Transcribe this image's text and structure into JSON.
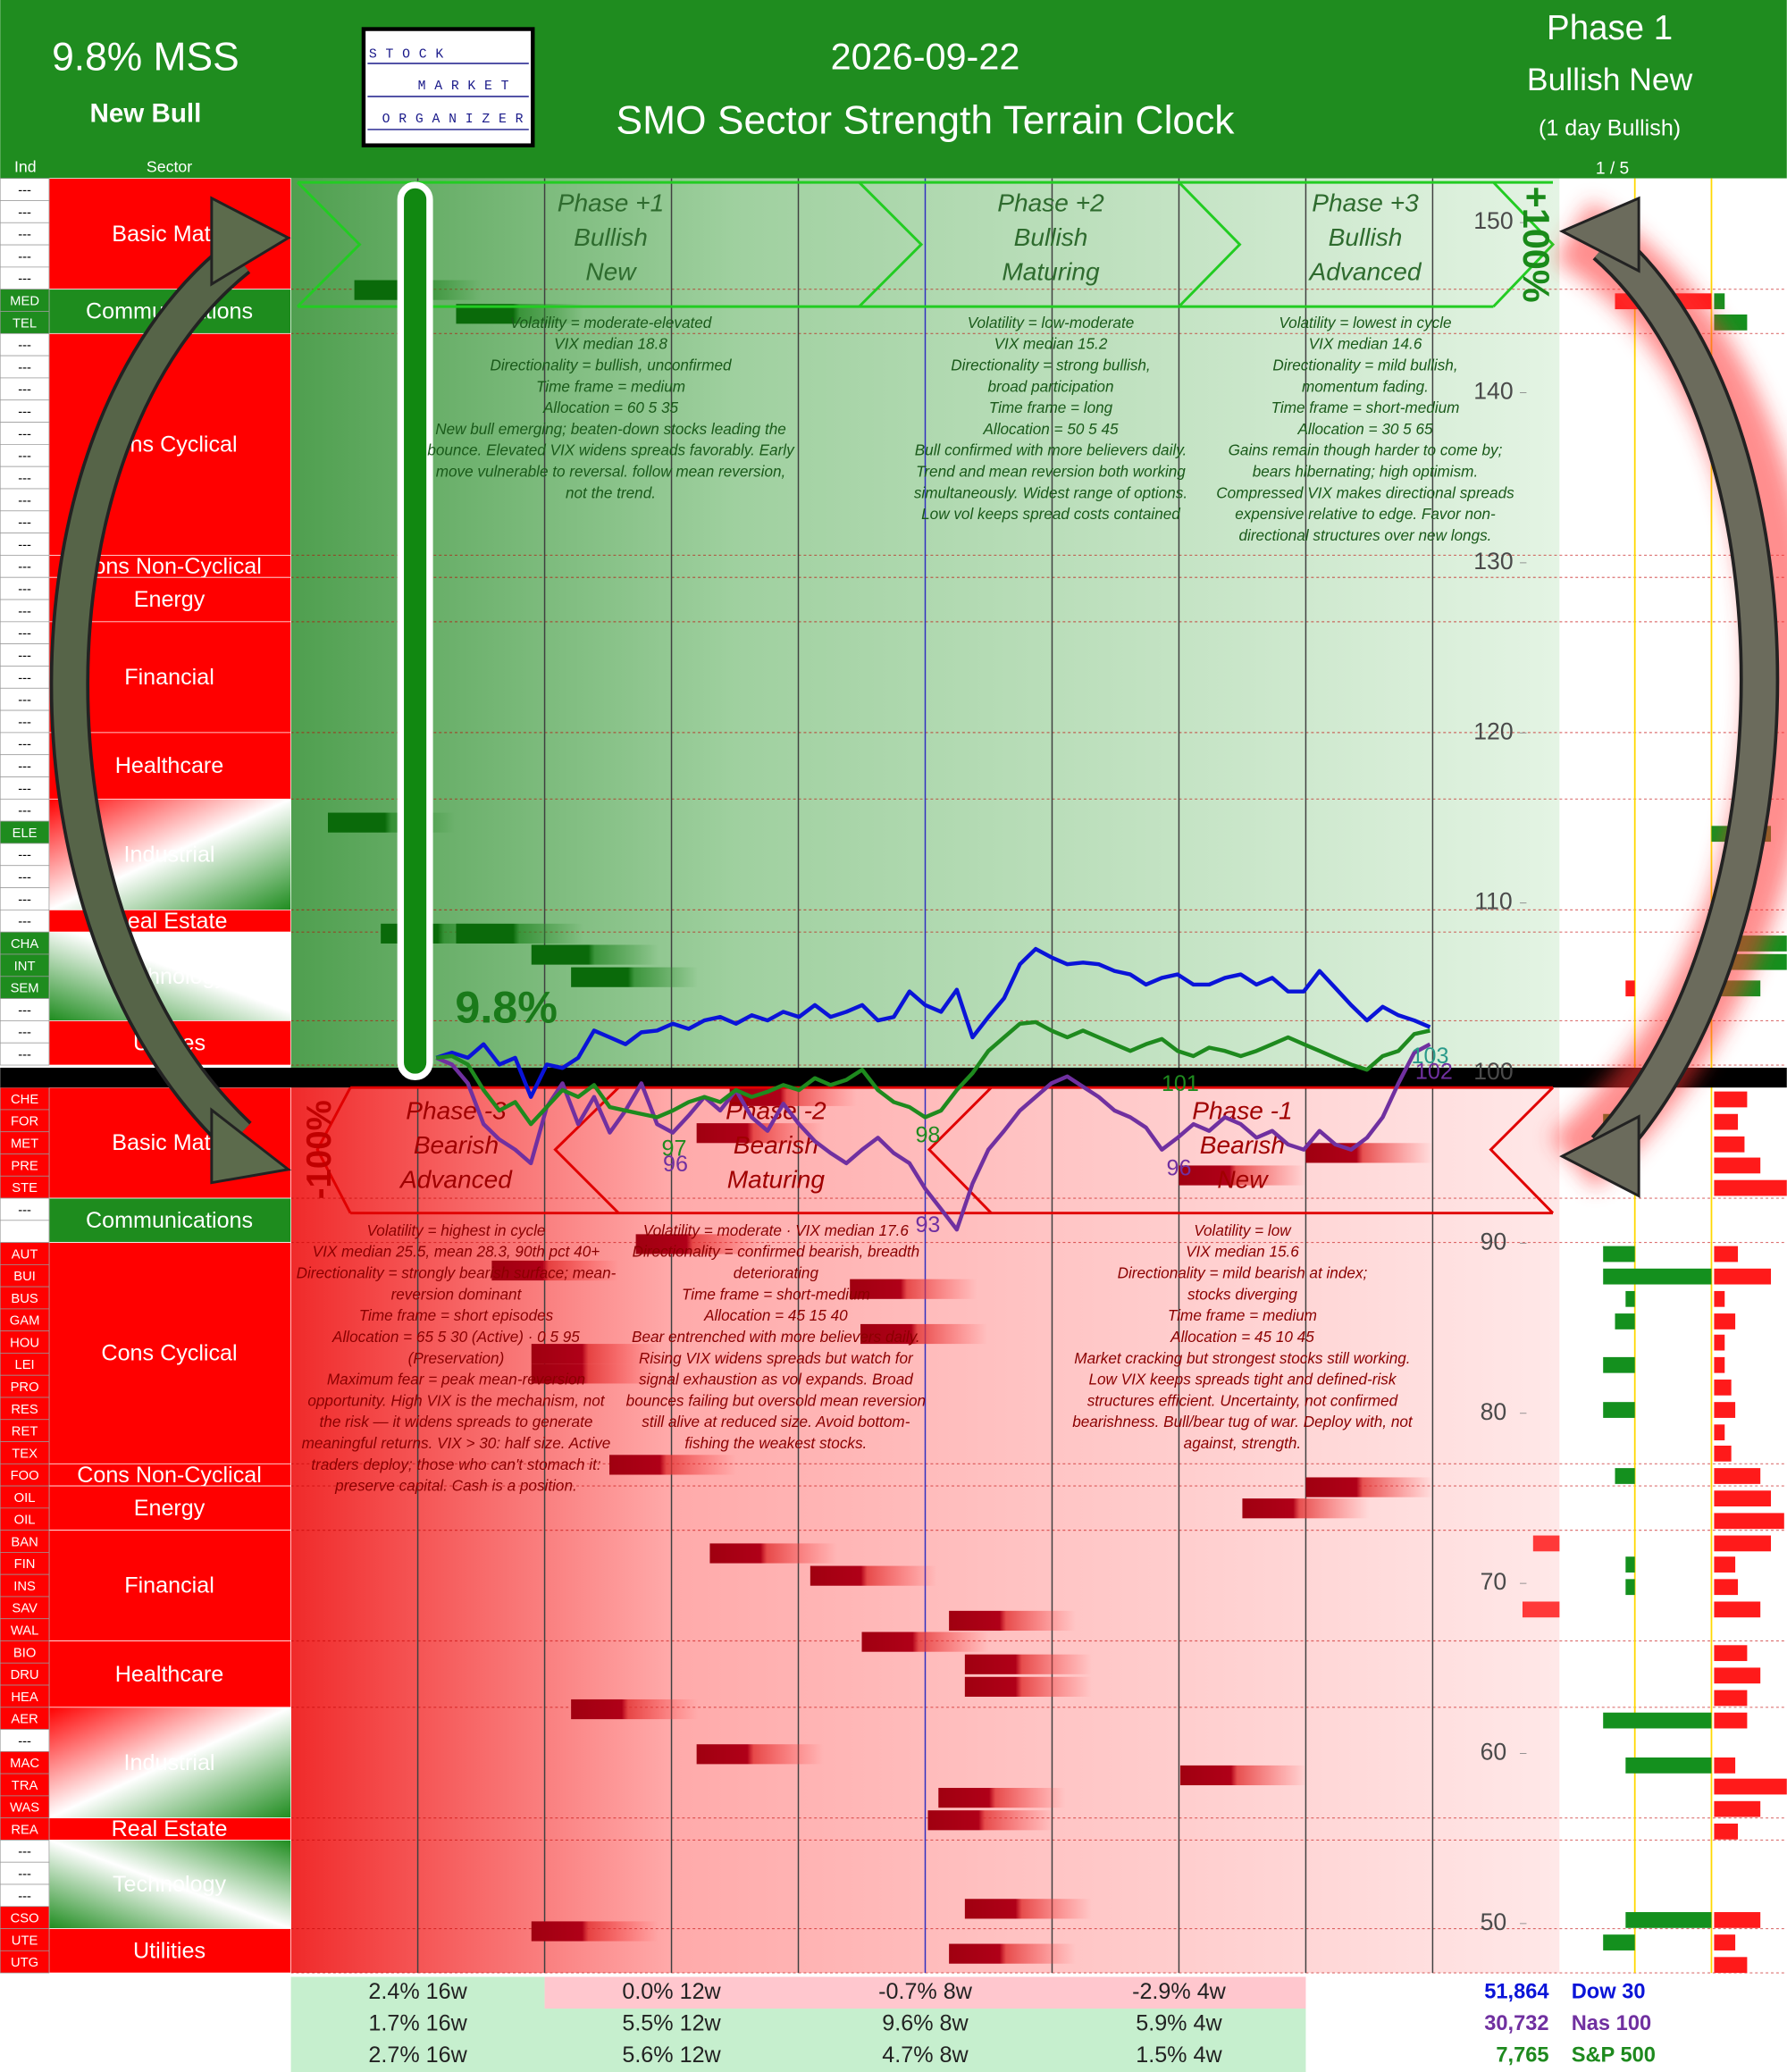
{
  "header": {
    "mss": "9.8% MSS",
    "status": "New Bull",
    "logo": [
      "STOCK",
      "MARKET",
      "ORGANIZER"
    ],
    "date": "2026-09-22",
    "title": "SMO Sector Strength Terrain Clock",
    "phase": "Phase 1",
    "phase_name": "Bullish New",
    "phase_note": "(1 day Bullish)"
  },
  "columns": {
    "ind": "Ind",
    "sector": "Sector",
    "page": "1 / 5"
  },
  "sectors": {
    "top": [
      {
        "name": "Basic Matls",
        "fill": "red",
        "codes": [
          "---",
          "---",
          "---",
          "---",
          "---"
        ]
      },
      {
        "name": "Communications",
        "fill": "green",
        "codes": [
          "MED",
          "TEL"
        ]
      },
      {
        "name": "Cons Cyclical",
        "fill": "red",
        "codes": [
          "---",
          "---",
          "---",
          "---",
          "---",
          "---",
          "---",
          "---",
          "---",
          "---"
        ]
      },
      {
        "name": "Cons Non-Cyclical",
        "fill": "red",
        "codes": [
          "---"
        ]
      },
      {
        "name": "Energy",
        "fill": "red",
        "codes": [
          "---",
          "---"
        ]
      },
      {
        "name": "Financial",
        "fill": "red",
        "codes": [
          "---",
          "---",
          "---",
          "---",
          "---"
        ]
      },
      {
        "name": "Healthcare",
        "fill": "red",
        "codes": [
          "---",
          "---",
          "---"
        ]
      },
      {
        "name": "Industrial",
        "fill": "gradient-red-green",
        "code_fill": "green",
        "codes": [
          "---",
          "ELE",
          "---",
          "---",
          "---"
        ]
      },
      {
        "name": "Real Estate",
        "fill": "red",
        "codes": [
          "---"
        ]
      },
      {
        "name": "Technology",
        "fill": "gradient-green-white",
        "code_fill": "green",
        "codes": [
          "CHA",
          "INT",
          "SEM",
          "---"
        ]
      },
      {
        "name": "Utilities",
        "fill": "red",
        "codes": [
          "---",
          "---"
        ]
      }
    ],
    "bottom": [
      {
        "name": "Basic Matls",
        "fill": "red",
        "codes": [
          "CHE",
          "FOR",
          "MET",
          "PRE",
          "STE"
        ]
      },
      {
        "name": "Communications",
        "fill": "green",
        "codes": [
          "---",
          null
        ]
      },
      {
        "name": "Cons Cyclical",
        "fill": "red",
        "codes": [
          "AUT",
          "BUI",
          "BUS",
          "GAM",
          "HOU",
          "LEI",
          "PRO",
          "RES",
          "RET",
          "TEX"
        ]
      },
      {
        "name": "Cons Non-Cyclical",
        "fill": "red",
        "codes": [
          "FOO"
        ]
      },
      {
        "name": "Energy",
        "fill": "red",
        "codes": [
          "OIL",
          "OIL"
        ]
      },
      {
        "name": "Financial",
        "fill": "red",
        "codes": [
          "BAN",
          "FIN",
          "INS",
          "SAV",
          "WAL"
        ]
      },
      {
        "name": "Healthcare",
        "fill": "red",
        "codes": [
          "BIO",
          "DRU",
          "HEA"
        ]
      },
      {
        "name": "Industrial",
        "fill": "gradient-red-green",
        "code_fill": "red",
        "codes": [
          "AER",
          "---",
          "MAC",
          "TRA",
          "WAS"
        ]
      },
      {
        "name": "Real Estate",
        "fill": "red",
        "codes": [
          "REA"
        ]
      },
      {
        "name": "Technology",
        "fill": "gradient-green-white-green",
        "code_fill": "red",
        "codes": [
          "---",
          "---",
          "---",
          "CSO"
        ]
      },
      {
        "name": "Utilities",
        "fill": "red",
        "codes": [
          "UTE",
          "UTG"
        ]
      }
    ]
  },
  "chart_data": {
    "type": "line",
    "ylim": [
      47.1,
      152.6
    ],
    "yticks": [
      150,
      140,
      130,
      120,
      110,
      100,
      90,
      80,
      70,
      60,
      50
    ],
    "grid": false,
    "mss_label": "9.8%",
    "bull_extreme": "+100%",
    "bear_extreme": "-100%",
    "series": [
      {
        "name": "Dow 30",
        "color": "#0a14d8",
        "values": [
          100.9,
          101.2,
          100.9,
          101.7,
          100.5,
          100.9,
          98.6,
          100.5,
          100.3,
          100.9,
          102.5,
          102.1,
          101.7,
          102.4,
          102.5,
          102.9,
          102.6,
          103.1,
          103.3,
          102.9,
          103.4,
          103.1,
          103.6,
          103.3,
          104.0,
          103.3,
          103.6,
          104.0,
          103.1,
          103.3,
          104.8,
          104.0,
          103.6,
          104.9,
          102.1,
          103.3,
          104.4,
          106.4,
          107.3,
          106.8,
          106.4,
          106.5,
          106.4,
          106.0,
          105.8,
          105.2,
          105.6,
          105.8,
          105.2,
          105.2,
          105.6,
          105.8,
          105.2,
          105.6,
          104.8,
          104.8,
          106.0,
          105.0,
          104.0,
          103.1,
          103.9,
          103.4,
          103.1,
          102.7
        ]
      },
      {
        "name": "Nas 100",
        "color": "#7030a0",
        "values": [
          100.9,
          100.5,
          99.4,
          97.0,
          96.1,
          95.5,
          94.7,
          98.0,
          99.4,
          97.0,
          98.6,
          96.5,
          97.8,
          99.4,
          97.0,
          96.5,
          97.5,
          98.6,
          97.8,
          99.0,
          97.4,
          96.6,
          98.2,
          97.0,
          96.0,
          95.3,
          94.7,
          95.5,
          96.2,
          95.3,
          94.7,
          93.2,
          92.0,
          90.8,
          93.5,
          95.5,
          96.6,
          97.8,
          98.6,
          99.4,
          99.8,
          99.2,
          98.6,
          97.8,
          97.4,
          96.8,
          95.5,
          96.2,
          97.0,
          96.6,
          97.4,
          97.0,
          96.2,
          96.6,
          95.8,
          95.5,
          96.6,
          95.8,
          95.5,
          96.2,
          97.4,
          99.4,
          101.2,
          101.7
        ]
      },
      {
        "name": "S&P 500",
        "color": "#1e8a1e",
        "values": [
          100.9,
          101.0,
          100.5,
          99.0,
          97.8,
          98.3,
          97.0,
          98.0,
          99.0,
          98.6,
          99.3,
          98.0,
          97.8,
          97.6,
          97.4,
          97.8,
          98.3,
          98.6,
          98.3,
          99.0,
          98.6,
          98.9,
          99.3,
          99.0,
          99.7,
          99.3,
          99.6,
          100.2,
          99.0,
          98.3,
          98.0,
          97.4,
          97.8,
          99.0,
          100.0,
          101.3,
          102.1,
          102.9,
          103.0,
          102.5,
          102.1,
          102.5,
          102.1,
          101.7,
          101.3,
          101.7,
          102.0,
          101.3,
          101.0,
          101.5,
          101.3,
          101.0,
          101.3,
          101.7,
          102.1,
          101.7,
          101.3,
          100.9,
          100.5,
          100.2,
          101.0,
          101.3,
          102.3,
          102.5
        ]
      }
    ],
    "line_labels": [
      {
        "value": 101,
        "color": "#1e8a1e"
      },
      {
        "value": 97,
        "color": "#1e8a1e"
      },
      {
        "value": 96,
        "color": "#7030a0"
      },
      {
        "value": 98,
        "color": "#1e8a1e"
      },
      {
        "value": 93,
        "color": "#7030a0"
      },
      {
        "value": 96,
        "color": "#7030a0"
      },
      {
        "value": 102,
        "color": "#7030a0"
      },
      {
        "value": 103,
        "color": "#2a9a8a"
      }
    ]
  },
  "phases": {
    "top": [
      {
        "title": "Phase +1",
        "lines": [
          "Bullish",
          "New"
        ],
        "notes": [
          "Volatility = moderate-elevated",
          "VIX median 18.8",
          "Directionality = bullish, unconfirmed",
          "Time frame = medium",
          "Allocation = 60 5 35",
          "New bull emerging; beaten-down stocks leading the",
          "bounce. Elevated VIX widens spreads favorably. Early",
          "move vulnerable to reversal. follow mean reversion,",
          "not the trend."
        ]
      },
      {
        "title": "Phase +2",
        "lines": [
          "Bullish",
          "Maturing"
        ],
        "notes": [
          "Volatility = low-moderate",
          "VIX median 15.2",
          "Directionality = strong bullish,",
          "broad participation",
          "Time frame = long",
          "Allocation = 50 5 45",
          "Bull confirmed with more believers daily.",
          "Trend and mean reversion both working",
          "simultaneously. Widest range of options.",
          "Low vol keeps spread costs contained"
        ]
      },
      {
        "title": "Phase +3",
        "lines": [
          "Bullish",
          "Advanced"
        ],
        "notes": [
          "Volatility = lowest in cycle",
          "VIX median 14.6",
          "Directionality = mild bullish,",
          "momentum fading.",
          "Time frame = short-medium",
          "Allocation = 30 5 65",
          "Gains remain though harder to come by;",
          "bears hibernating; high optimism.",
          "Compressed VIX makes directional spreads",
          "expensive relative to edge. Favor non-",
          "directional structures over new longs."
        ]
      }
    ],
    "bottom": [
      {
        "title": "Phase -3",
        "lines": [
          "Bearish",
          "Advanced"
        ],
        "notes": [
          "Volatility = highest in cycle",
          "VIX median 25.5, mean 28.3, 90th pct 40+",
          "Directionality = strongly bearish surface; mean-",
          "reversion dominant",
          "Time frame = short episodes",
          "Allocation = 65 5 30 (Active) · 0 5 95",
          "(Preservation)",
          "Maximum fear = peak mean-reversion",
          "opportunity. High VIX is the mechanism, not",
          "the risk — it widens spreads to generate",
          "meaningful returns. VIX > 30: half size. Active",
          "traders deploy; those who can't stomach it:",
          "preserve capital. Cash is a position."
        ]
      },
      {
        "title": "Phase -2",
        "lines": [
          "Bearish",
          "Maturing"
        ],
        "notes": [
          "Volatility = moderate · VIX median 17.6",
          "Directionality = confirmed bearish, breadth",
          "deteriorating",
          "Time frame = short-medium",
          "Allocation = 45 15 40",
          "Bear entrenched with more believers daily.",
          "Rising VIX widens spreads but watch for",
          "signal exhaustion as vol expands. Broad",
          "bounces failing but oversold mean reversion",
          "still alive at reduced size. Avoid bottom-",
          "fishing the weakest stocks."
        ]
      },
      {
        "title": "Phase -1",
        "lines": [
          "Bearish",
          "New"
        ],
        "notes": [
          "Volatility = low",
          "VIX median 15.6",
          "Directionality = mild bearish at index;",
          "stocks diverging",
          "Time frame = medium",
          "Allocation = 45 10 45",
          "Market cracking but strongest stocks still working.",
          "Low VIX keeps spreads tight and defined-risk",
          "structures efficient. Uncertainty, not confirmed",
          "bearishness. Bull/bear tug of war. Deploy with, not",
          "against, strength."
        ]
      }
    ]
  },
  "summary": {
    "rows": [
      [
        "2.4% 16w",
        "0.0% 12w",
        "-0.7% 8w",
        "-2.9% 4w"
      ],
      [
        "1.7% 16w",
        "5.5% 12w",
        "9.6% 8w",
        "5.9% 4w"
      ],
      [
        "2.7% 16w",
        "5.6% 12w",
        "4.7% 8w",
        "1.5% 4w"
      ]
    ],
    "totals": [
      {
        "value": 51864,
        "label": "51,864"
      },
      {
        "value": 30732,
        "label": "30,732"
      },
      {
        "value": 7765,
        "label": "7,765"
      }
    ]
  }
}
